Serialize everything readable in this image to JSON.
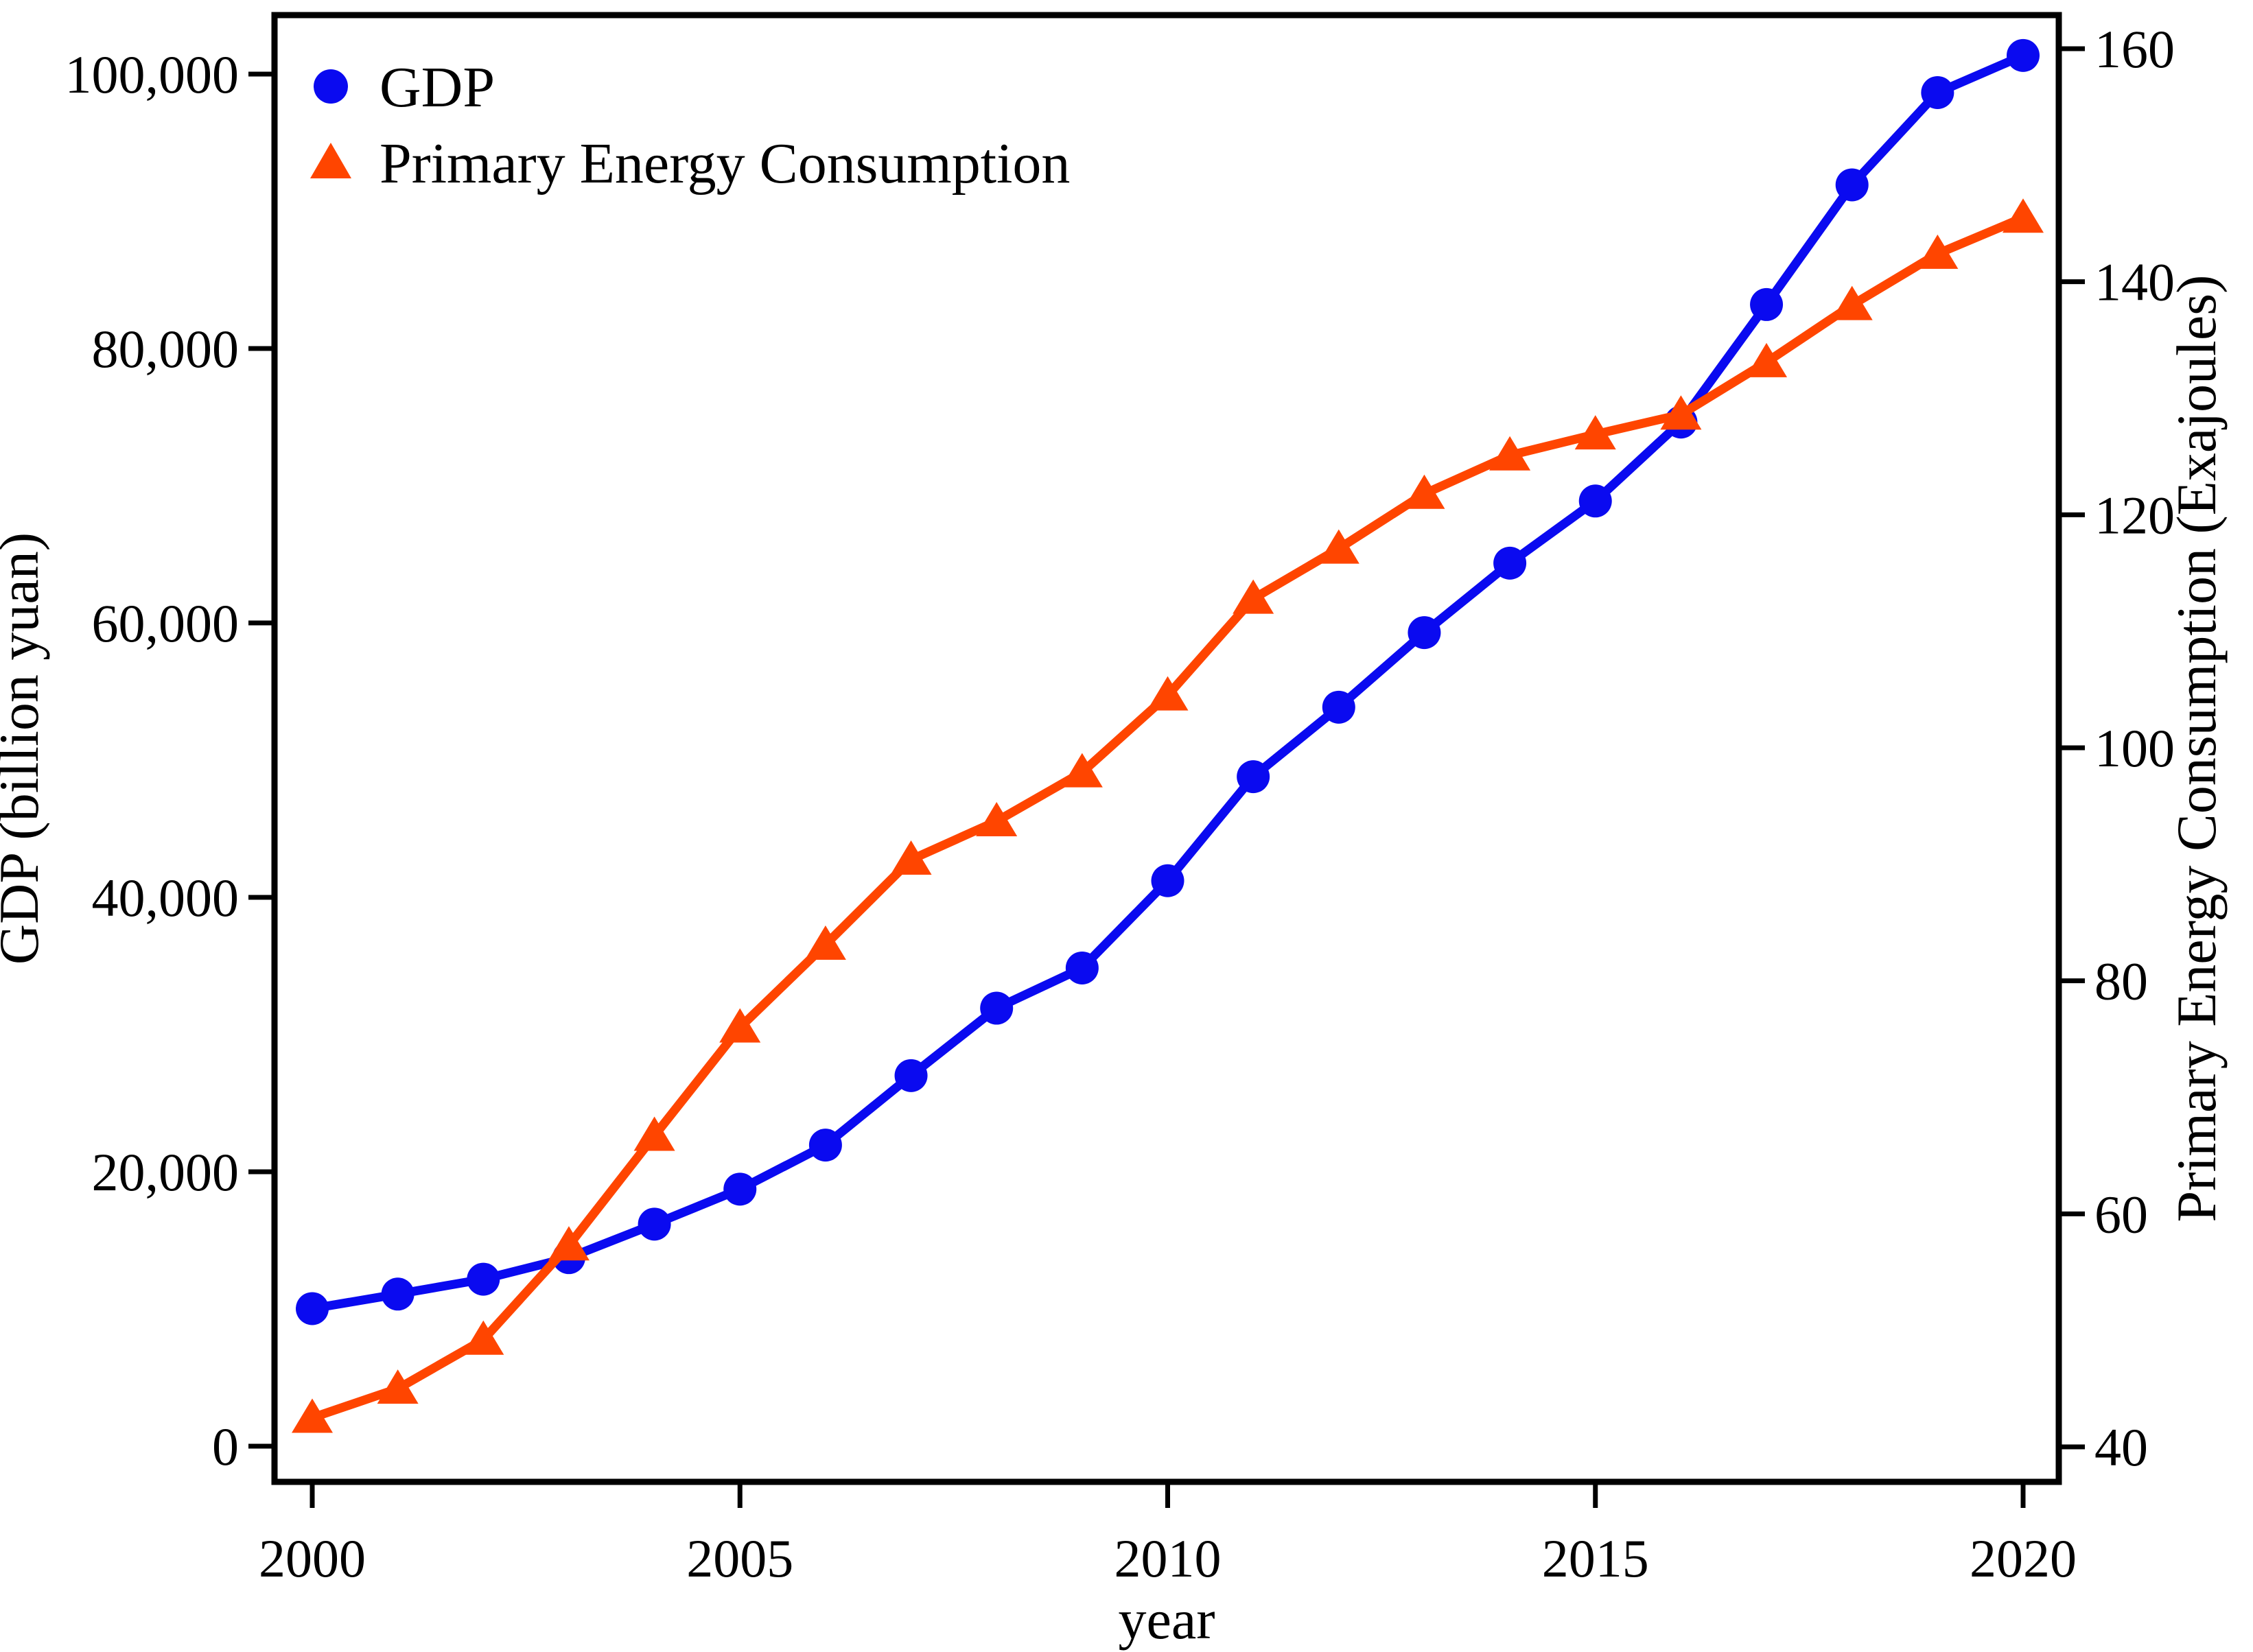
{
  "chart_data": {
    "type": "line",
    "title": "",
    "x_label": "year",
    "years": [
      2000,
      2001,
      2002,
      2003,
      2004,
      2005,
      2006,
      2007,
      2008,
      2009,
      2010,
      2011,
      2012,
      2013,
      2014,
      2015,
      2016,
      2017,
      2018,
      2019,
      2020
    ],
    "x_ticks": [
      2000,
      2005,
      2010,
      2015,
      2020
    ],
    "left_axis": {
      "label": "GDP (billion yuan)",
      "tick_labels": [
        "0",
        "20,000",
        "40,000",
        "60,000",
        "80,000",
        "100,000"
      ],
      "tick_values": [
        0,
        20000,
        40000,
        60000,
        80000,
        100000
      ],
      "range": [
        0,
        104300
      ]
    },
    "right_axis": {
      "label": "Primary Energy Consumption (Exajoules)",
      "tick_labels": [
        "40",
        "60",
        "80",
        "100",
        "120",
        "140",
        "160"
      ],
      "tick_values": [
        40,
        60,
        80,
        100,
        120,
        140,
        160
      ],
      "range": [
        37,
        163
      ]
    },
    "grid": false,
    "legend_position": "top-left-inside",
    "series": [
      {
        "name": "GDP",
        "axis": "left",
        "marker": "circle",
        "color": "#0a0af0",
        "values": [
          10028,
          11086,
          12171,
          13742,
          16184,
          18732,
          21944,
          27009,
          31924,
          34852,
          41212,
          48794,
          53858,
          59296,
          64356,
          68886,
          74640,
          83204,
          91928,
          98652,
          101357
        ]
      },
      {
        "name": "Primary Energy Consumption",
        "axis": "right",
        "marker": "triangle",
        "color": "#ff4500",
        "values": [
          42.5,
          45.0,
          49.2,
          57.3,
          66.7,
          76.0,
          83.1,
          90.4,
          93.7,
          97.9,
          104.5,
          112.8,
          117.1,
          121.8,
          125.1,
          126.9,
          128.6,
          133.1,
          138.0,
          142.4,
          145.5
        ]
      }
    ]
  }
}
